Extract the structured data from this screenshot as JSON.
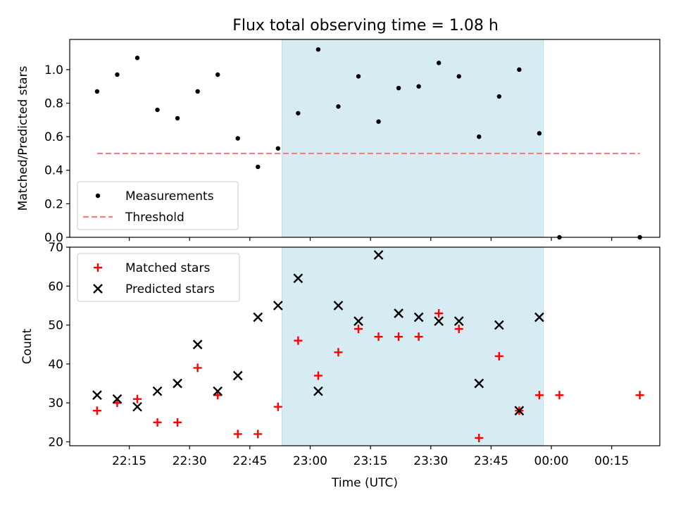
{
  "title": "Flux total observing time = 1.08 h",
  "colors": {
    "shade": "#add8e6",
    "measurement": "#000000",
    "threshold": "#f08080",
    "matched": "#ff0000",
    "predicted": "#000000"
  },
  "chart_data": [
    {
      "type": "scatter",
      "ylabel": "Matched/Predicted stars",
      "ylim": [
        0,
        1.18
      ],
      "yticks": [
        0.0,
        0.2,
        0.4,
        0.6,
        0.8,
        1.0
      ],
      "ytick_labels": [
        "0.0",
        "0.2",
        "0.4",
        "0.6",
        "0.8",
        "1.0"
      ],
      "grid": false,
      "legend_position": "lower-left",
      "shaded_interval": [
        "22:53",
        "23:58"
      ],
      "series": [
        {
          "name": "Measurements",
          "marker": "dot",
          "x": [
            "22:07",
            "22:12",
            "22:17",
            "22:22",
            "22:27",
            "22:32",
            "22:37",
            "22:42",
            "22:47",
            "22:52",
            "22:57",
            "23:02",
            "23:07",
            "23:12",
            "23:17",
            "23:22",
            "23:27",
            "23:32",
            "23:37",
            "23:42",
            "23:47",
            "23:52",
            "23:57",
            "00:02",
            "00:22"
          ],
          "y": [
            0.87,
            0.97,
            1.07,
            0.76,
            0.71,
            0.87,
            0.97,
            0.59,
            0.42,
            0.53,
            0.74,
            1.12,
            0.78,
            0.96,
            0.69,
            0.89,
            0.9,
            1.04,
            0.96,
            0.6,
            0.84,
            1.0,
            0.62,
            0.0,
            0.0
          ]
        },
        {
          "name": "Threshold",
          "style": "dashed",
          "x": [
            "22:07",
            "00:22"
          ],
          "y": [
            0.5,
            0.5
          ]
        }
      ]
    },
    {
      "type": "scatter",
      "xlabel": "Time (UTC)",
      "ylabel": "Count",
      "ylim": [
        19,
        70
      ],
      "yticks": [
        20,
        30,
        40,
        50,
        60,
        70
      ],
      "ytick_labels": [
        "20",
        "30",
        "40",
        "50",
        "60",
        "70"
      ],
      "xticks": [
        "22:15",
        "22:30",
        "22:45",
        "23:00",
        "23:15",
        "23:30",
        "23:45",
        "00:00",
        "00:15"
      ],
      "grid": false,
      "legend_position": "upper-left",
      "shaded_interval": [
        "22:53",
        "23:58"
      ],
      "series": [
        {
          "name": "Matched stars",
          "marker": "plus",
          "x": [
            "22:07",
            "22:12",
            "22:17",
            "22:22",
            "22:27",
            "22:32",
            "22:37",
            "22:42",
            "22:47",
            "22:52",
            "22:57",
            "23:02",
            "23:07",
            "23:12",
            "23:17",
            "23:22",
            "23:27",
            "23:32",
            "23:37",
            "23:42",
            "23:47",
            "23:52",
            "23:57",
            "00:02",
            "00:22"
          ],
          "y": [
            28,
            30,
            31,
            25,
            25,
            39,
            32,
            22,
            22,
            29,
            46,
            37,
            43,
            49,
            47,
            47,
            47,
            53,
            49,
            21,
            42,
            28,
            32,
            32,
            32
          ]
        },
        {
          "name": "Predicted stars",
          "marker": "x",
          "x": [
            "22:07",
            "22:12",
            "22:17",
            "22:22",
            "22:27",
            "22:32",
            "22:37",
            "22:42",
            "22:47",
            "22:52",
            "22:57",
            "23:02",
            "23:07",
            "23:12",
            "23:17",
            "23:22",
            "23:27",
            "23:32",
            "23:37",
            "23:42",
            "23:47",
            "23:52",
            "23:57"
          ],
          "y": [
            32,
            31,
            29,
            33,
            35,
            45,
            33,
            37,
            52,
            55,
            62,
            33,
            55,
            51,
            68,
            53,
            52,
            51,
            51,
            35,
            50,
            28,
            52
          ]
        }
      ]
    }
  ]
}
